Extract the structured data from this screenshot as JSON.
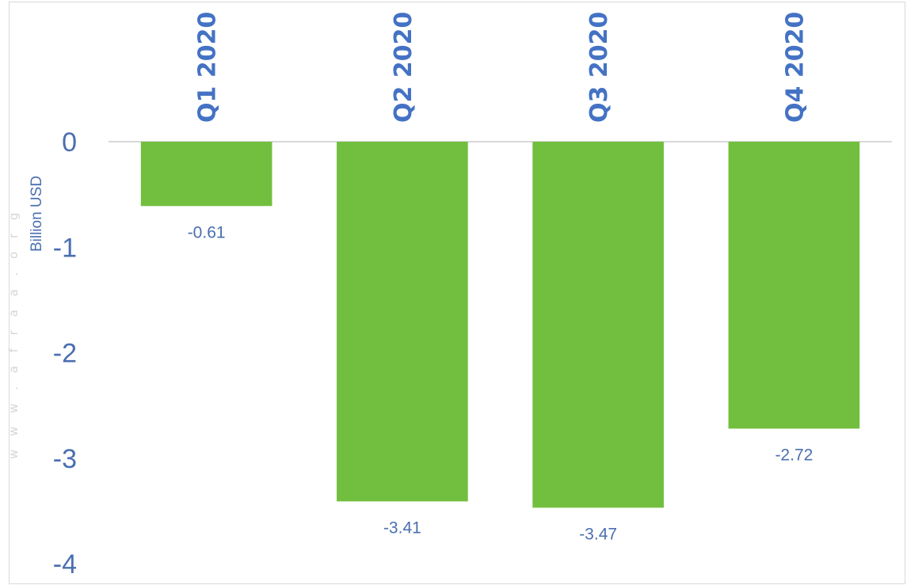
{
  "watermark": "w w w . a f r a a . o r g",
  "chart_data": {
    "type": "bar",
    "title": "",
    "xlabel": "",
    "ylabel": "Billion USD",
    "categories": [
      "Q1 2020",
      "Q2 2020",
      "Q3 2020",
      "Q4 2020"
    ],
    "values": [
      -0.61,
      -3.41,
      -3.47,
      -2.72
    ],
    "data_labels": [
      "-0.61",
      "-3.41",
      "-3.47",
      "-2.72"
    ],
    "ylim": [
      -4,
      0
    ],
    "yticks": [
      0,
      -1,
      -2,
      -3,
      -4
    ],
    "ytick_labels": [
      "0",
      "-1",
      "-2",
      "-3",
      "-4"
    ],
    "x_axis_position": "top",
    "grid": false,
    "legend": "none",
    "bar_color": "#72bf3f",
    "axis_color": "#d9d9d9",
    "text_color": "#4472c4"
  }
}
